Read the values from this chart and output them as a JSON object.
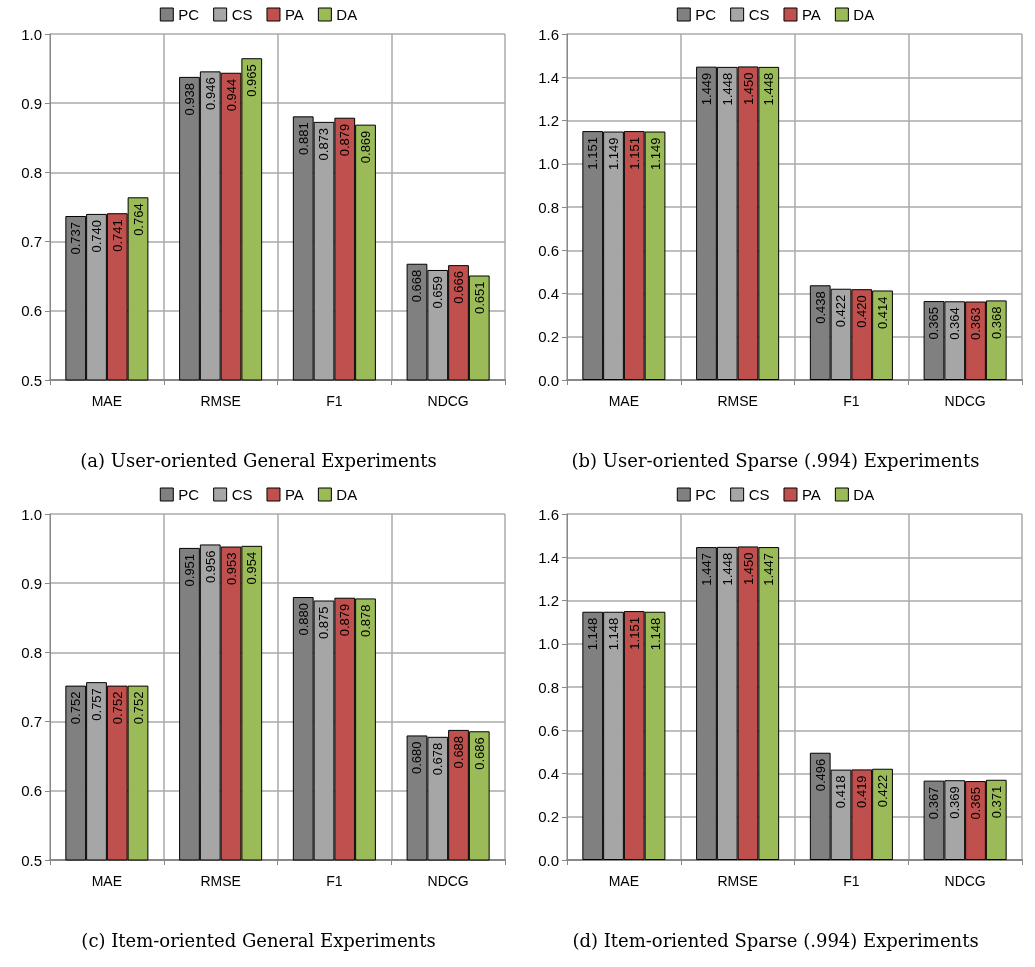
{
  "chart_data": [
    {
      "type": "bar",
      "title": "(a) User-oriented General Experiments",
      "categories": [
        "MAE",
        "RMSE",
        "F1",
        "NDCG"
      ],
      "series": [
        {
          "name": "PC",
          "color": "#808080",
          "values": [
            0.737,
            0.938,
            0.881,
            0.668
          ],
          "value_labels": [
            "0.737",
            "0.938",
            "0.881",
            "0.668"
          ]
        },
        {
          "name": "CS",
          "color": "#a6a6a6",
          "values": [
            0.74,
            0.946,
            0.873,
            0.659
          ],
          "value_labels": [
            "0.740",
            "0.946",
            "0.873",
            "0.659"
          ]
        },
        {
          "name": "PA",
          "color": "#c0504d",
          "values": [
            0.741,
            0.944,
            0.879,
            0.666
          ],
          "value_labels": [
            "0.741",
            "0.944",
            "0.879",
            "0.666"
          ]
        },
        {
          "name": "DA",
          "color": "#9bbb59",
          "values": [
            0.764,
            0.965,
            0.869,
            0.651
          ],
          "value_labels": [
            "0.764",
            "0.965",
            "0.869",
            "0.651"
          ]
        }
      ],
      "ylim": [
        0.5,
        1.0
      ],
      "yticks": [
        {
          "value": 0.5,
          "label": "0.5"
        },
        {
          "value": 0.6,
          "label": "0.6"
        },
        {
          "value": 0.7,
          "label": "0.7"
        },
        {
          "value": 0.8,
          "label": "0.8"
        },
        {
          "value": 0.9,
          "label": "0.9"
        },
        {
          "value": 1.0,
          "label": "1.0"
        }
      ],
      "grid": true,
      "legend": "top"
    },
    {
      "type": "bar",
      "title": "(b) User-oriented Sparse (.994) Experiments",
      "categories": [
        "MAE",
        "RMSE",
        "F1",
        "NDCG"
      ],
      "series": [
        {
          "name": "PC",
          "color": "#808080",
          "values": [
            1.151,
            1.449,
            0.438,
            0.365
          ],
          "value_labels": [
            "1.151",
            "1.449",
            "0.438",
            "0.365"
          ]
        },
        {
          "name": "CS",
          "color": "#a6a6a6",
          "values": [
            1.149,
            1.448,
            0.422,
            0.364
          ],
          "value_labels": [
            "1.149",
            "1.448",
            "0.422",
            "0.364"
          ]
        },
        {
          "name": "PA",
          "color": "#c0504d",
          "values": [
            1.151,
            1.45,
            0.42,
            0.363
          ],
          "value_labels": [
            "1.151",
            "1.450",
            "0.420",
            "0.363"
          ]
        },
        {
          "name": "DA",
          "color": "#9bbb59",
          "values": [
            1.149,
            1.448,
            0.414,
            0.368
          ],
          "value_labels": [
            "1.149",
            "1.448",
            "0.414",
            "0.368"
          ]
        }
      ],
      "ylim": [
        0.0,
        1.6
      ],
      "yticks": [
        {
          "value": 0,
          "label": "0.0"
        },
        {
          "value": 0.2,
          "label": "0.2"
        },
        {
          "value": 0.4,
          "label": "0.4"
        },
        {
          "value": 0.6,
          "label": "0.6"
        },
        {
          "value": 0.8,
          "label": "0.8"
        },
        {
          "value": 1.0,
          "label": "1.0"
        },
        {
          "value": 1.2,
          "label": "1.2"
        },
        {
          "value": 1.4,
          "label": "1.4"
        },
        {
          "value": 1.6,
          "label": "1.6"
        }
      ],
      "grid": true,
      "legend": "top"
    },
    {
      "type": "bar",
      "title": "(c) Item-oriented General Experiments",
      "categories": [
        "MAE",
        "RMSE",
        "F1",
        "NDCG"
      ],
      "series": [
        {
          "name": "PC",
          "color": "#808080",
          "values": [
            0.752,
            0.951,
            0.88,
            0.68
          ],
          "value_labels": [
            "0.752",
            "0.951",
            "0.880",
            "0.680"
          ]
        },
        {
          "name": "CS",
          "color": "#a6a6a6",
          "values": [
            0.757,
            0.956,
            0.875,
            0.678
          ],
          "value_labels": [
            "0.757",
            "0.956",
            "0.875",
            "0.678"
          ]
        },
        {
          "name": "PA",
          "color": "#c0504d",
          "values": [
            0.752,
            0.953,
            0.879,
            0.688
          ],
          "value_labels": [
            "0.752",
            "0.953",
            "0.879",
            "0.688"
          ]
        },
        {
          "name": "DA",
          "color": "#9bbb59",
          "values": [
            0.752,
            0.954,
            0.878,
            0.686
          ],
          "value_labels": [
            "0.752",
            "0.954",
            "0.878",
            "0.686"
          ]
        }
      ],
      "ylim": [
        0.5,
        1.0
      ],
      "yticks": [
        {
          "value": 0.5,
          "label": "0.5"
        },
        {
          "value": 0.6,
          "label": "0.6"
        },
        {
          "value": 0.7,
          "label": "0.7"
        },
        {
          "value": 0.8,
          "label": "0.8"
        },
        {
          "value": 0.9,
          "label": "0.9"
        },
        {
          "value": 1.0,
          "label": "1.0"
        }
      ],
      "grid": true,
      "legend": "top"
    },
    {
      "type": "bar",
      "title": "(d) Item-oriented Sparse (.994) Experiments",
      "categories": [
        "MAE",
        "RMSE",
        "F1",
        "NDCG"
      ],
      "series": [
        {
          "name": "PC",
          "color": "#808080",
          "values": [
            1.148,
            1.447,
            0.496,
            0.367
          ],
          "value_labels": [
            "1.148",
            "1.447",
            "0.496",
            "0.367"
          ]
        },
        {
          "name": "CS",
          "color": "#a6a6a6",
          "values": [
            1.148,
            1.448,
            0.418,
            0.369
          ],
          "value_labels": [
            "1.148",
            "1.448",
            "0.418",
            "0.369"
          ]
        },
        {
          "name": "PA",
          "color": "#c0504d",
          "values": [
            1.151,
            1.45,
            0.419,
            0.365
          ],
          "value_labels": [
            "1.151",
            "1.450",
            "0.419",
            "0.365"
          ]
        },
        {
          "name": "DA",
          "color": "#9bbb59",
          "values": [
            1.148,
            1.447,
            0.422,
            0.371
          ],
          "value_labels": [
            "1.148",
            "1.447",
            "0.422",
            "0.371"
          ]
        }
      ],
      "ylim": [
        0.0,
        1.6
      ],
      "yticks": [
        {
          "value": 0,
          "label": "0.0"
        },
        {
          "value": 0.2,
          "label": "0.2"
        },
        {
          "value": 0.4,
          "label": "0.4"
        },
        {
          "value": 0.6,
          "label": "0.6"
        },
        {
          "value": 0.8,
          "label": "0.8"
        },
        {
          "value": 1.0,
          "label": "1.0"
        },
        {
          "value": 1.2,
          "label": "1.2"
        },
        {
          "value": 1.4,
          "label": "1.4"
        },
        {
          "value": 1.6,
          "label": "1.6"
        }
      ],
      "grid": true,
      "legend": "top"
    }
  ]
}
